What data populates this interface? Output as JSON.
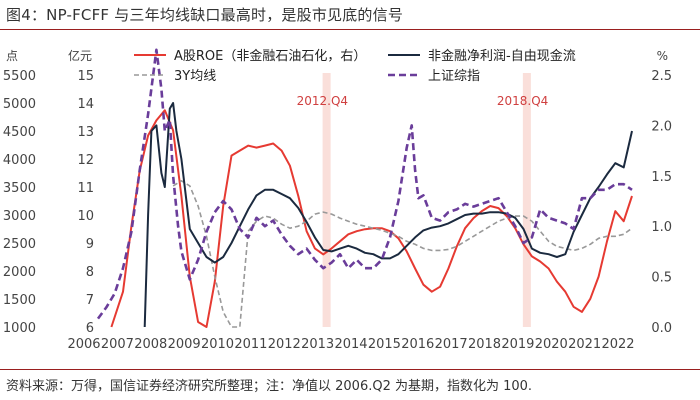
{
  "page": {
    "title": "图4：NP-FCFF 与三年均线缺口最高时，是股市见底的信号",
    "source": "资料来源：万得，国信证券经济研究所整理；注：净值以 2006.Q2 为基期，指数化为 100."
  },
  "chart_data": {
    "type": "line",
    "title": "图4：NP-FCFF 与三年均线缺口最高时，是股市见底的信号",
    "axes": {
      "left_outer": {
        "unit": "点",
        "min": 1000,
        "max": 5500,
        "ticks": [
          "5500",
          "5000",
          "4500",
          "4000",
          "3500",
          "3000",
          "2500",
          "2000",
          "1500",
          "1000"
        ]
      },
      "left_inner": {
        "unit": "亿元",
        "min": 6,
        "max": 15,
        "ticks": [
          "15",
          "14",
          "13",
          "12",
          "11",
          "10",
          "9",
          "8",
          "7",
          "6"
        ]
      },
      "right": {
        "unit": "%",
        "min": 0.0,
        "max": 2.5,
        "ticks": [
          "2.5",
          "2.0",
          "1.5",
          "1.0",
          "0.5",
          "0.0"
        ]
      },
      "x": {
        "min": 2006,
        "max": 2022,
        "ticks": [
          "2006",
          "2007",
          "2008",
          "2009",
          "2010",
          "2011",
          "2012",
          "2013",
          "2014",
          "2015",
          "2016",
          "2017",
          "2018",
          "2019",
          "2020",
          "2021",
          "2022"
        ]
      }
    },
    "annotations": [
      {
        "label": "2012.Q4",
        "x": 2012.85
      },
      {
        "label": "2018.Q4",
        "x": 2018.85
      }
    ],
    "legend": [
      "A股ROE（非金融石油石化，右）",
      "3Y均线",
      "非金融净利润-自由现金流",
      "上证综指"
    ],
    "series": [
      {
        "name": "A股ROE（非金融石油石化，右）",
        "axis": "right",
        "color": "#e63a32",
        "dash": "solid",
        "x": [
          2006.4,
          2006.75,
          2007.0,
          2007.25,
          2007.5,
          2007.75,
          2008.0,
          2008.25,
          2008.5,
          2008.75,
          2009.0,
          2009.25,
          2009.5,
          2009.75,
          2010.0,
          2010.25,
          2010.5,
          2010.75,
          2011.0,
          2011.25,
          2011.5,
          2011.75,
          2012.0,
          2012.25,
          2012.5,
          2012.75,
          2013.0,
          2013.25,
          2013.5,
          2013.75,
          2014.0,
          2014.25,
          2014.5,
          2014.75,
          2015.0,
          2015.25,
          2015.5,
          2015.75,
          2016.0,
          2016.25,
          2016.5,
          2016.75,
          2017.0,
          2017.25,
          2017.5,
          2017.75,
          2018.0,
          2018.25,
          2018.5,
          2018.75,
          2019.0,
          2019.25,
          2019.5,
          2019.75,
          2020.0,
          2020.25,
          2020.5,
          2020.75,
          2021.0,
          2021.25,
          2021.5,
          2021.75,
          2022.0
        ],
        "values": [
          0.0,
          0.35,
          1.0,
          1.55,
          1.9,
          2.05,
          2.15,
          1.95,
          1.3,
          0.5,
          0.05,
          0.0,
          0.45,
          1.2,
          1.7,
          1.75,
          1.8,
          1.78,
          1.8,
          1.82,
          1.75,
          1.6,
          1.3,
          0.95,
          0.78,
          0.72,
          0.78,
          0.85,
          0.92,
          0.95,
          0.97,
          0.98,
          0.98,
          0.95,
          0.88,
          0.75,
          0.58,
          0.42,
          0.35,
          0.4,
          0.58,
          0.8,
          0.98,
          1.08,
          1.15,
          1.2,
          1.18,
          1.1,
          0.98,
          0.82,
          0.7,
          0.65,
          0.58,
          0.45,
          0.35,
          0.2,
          0.15,
          0.28,
          0.5,
          0.85,
          1.15,
          1.05,
          1.3
        ]
      },
      {
        "name": "3Y均线",
        "axis": "right",
        "color": "#999999",
        "dash": "dashed",
        "x": [
          2008.25,
          2008.5,
          2008.75,
          2009.0,
          2009.25,
          2009.5,
          2009.75,
          2010.0,
          2010.25,
          2010.5,
          2010.75,
          2011.0,
          2011.25,
          2011.5,
          2011.75,
          2012.0,
          2012.25,
          2012.5,
          2012.75,
          2013.0,
          2013.25,
          2013.5,
          2013.75,
          2014.0,
          2014.25,
          2014.5,
          2014.75,
          2015.0,
          2015.25,
          2015.5,
          2015.75,
          2016.0,
          2016.25,
          2016.5,
          2016.75,
          2017.0,
          2017.25,
          2017.5,
          2017.75,
          2018.0,
          2018.25,
          2018.5,
          2018.75,
          2019.0,
          2019.25,
          2019.5,
          2019.75,
          2020.0,
          2020.25,
          2020.5,
          2020.75,
          2021.0,
          2021.25,
          2021.5,
          2021.75,
          2022.0
        ],
        "values": [
          1.4,
          1.45,
          1.4,
          1.2,
          0.9,
          0.5,
          0.15,
          0.0,
          0.0,
          0.95,
          1.05,
          1.1,
          1.08,
          1.02,
          0.98,
          1.0,
          1.05,
          1.12,
          1.14,
          1.12,
          1.08,
          1.05,
          1.02,
          1.0,
          0.98,
          0.96,
          0.93,
          0.9,
          0.85,
          0.82,
          0.78,
          0.76,
          0.76,
          0.77,
          0.8,
          0.85,
          0.9,
          0.95,
          1.0,
          1.05,
          1.08,
          1.1,
          1.1,
          1.05,
          0.95,
          0.85,
          0.8,
          0.78,
          0.76,
          0.78,
          0.82,
          0.88,
          0.9,
          0.9,
          0.92,
          0.98
        ]
      },
      {
        "name": "非金融净利润-自由现金流",
        "axis": "left_inner",
        "color": "#1b2a3f",
        "dash": "solid",
        "x": [
          2007.4,
          2007.5,
          2007.6,
          2007.75,
          2007.9,
          2008.0,
          2008.15,
          2008.25,
          2008.35,
          2008.5,
          2008.75,
          2009.0,
          2009.25,
          2009.5,
          2009.75,
          2010.0,
          2010.25,
          2010.5,
          2010.75,
          2011.0,
          2011.25,
          2011.5,
          2011.75,
          2012.0,
          2012.25,
          2012.5,
          2012.75,
          2013.0,
          2013.25,
          2013.5,
          2013.75,
          2014.0,
          2014.25,
          2014.5,
          2014.75,
          2015.0,
          2015.25,
          2015.5,
          2015.75,
          2016.0,
          2016.25,
          2016.5,
          2016.75,
          2017.0,
          2017.25,
          2017.5,
          2017.75,
          2018.0,
          2018.25,
          2018.5,
          2018.75,
          2019.0,
          2019.25,
          2019.5,
          2019.75,
          2020.0,
          2020.25,
          2020.5,
          2020.75,
          2021.0,
          2021.25,
          2021.5,
          2021.75,
          2022.0
        ],
        "values": [
          6.0,
          10.0,
          13.0,
          13.2,
          11.5,
          11.0,
          13.8,
          14.0,
          13.0,
          12.0,
          9.5,
          9.0,
          8.5,
          8.3,
          8.5,
          9.0,
          9.6,
          10.2,
          10.7,
          10.9,
          10.9,
          10.75,
          10.6,
          10.25,
          9.75,
          9.2,
          8.75,
          8.7,
          8.8,
          8.9,
          8.8,
          8.65,
          8.6,
          8.45,
          8.45,
          8.6,
          8.9,
          9.2,
          9.45,
          9.55,
          9.6,
          9.7,
          9.85,
          10.0,
          10.05,
          10.05,
          10.1,
          10.1,
          10.05,
          9.9,
          9.5,
          8.8,
          8.65,
          8.6,
          8.5,
          8.6,
          9.4,
          10.0,
          10.6,
          11.0,
          11.45,
          11.85,
          11.7,
          13.0
        ]
      },
      {
        "name": "上证综指",
        "axis": "left_outer",
        "color": "#6a3d9a",
        "dash": "dashed",
        "x": [
          2006.0,
          2006.25,
          2006.5,
          2006.75,
          2007.0,
          2007.25,
          2007.5,
          2007.75,
          2007.9,
          2008.0,
          2008.15,
          2008.25,
          2008.4,
          2008.5,
          2008.75,
          2009.0,
          2009.25,
          2009.5,
          2009.75,
          2010.0,
          2010.25,
          2010.5,
          2010.75,
          2011.0,
          2011.25,
          2011.5,
          2011.75,
          2012.0,
          2012.25,
          2012.5,
          2012.75,
          2013.0,
          2013.25,
          2013.5,
          2013.75,
          2014.0,
          2014.25,
          2014.5,
          2014.75,
          2015.0,
          2015.25,
          2015.4,
          2015.5,
          2015.6,
          2015.75,
          2016.0,
          2016.25,
          2016.5,
          2016.75,
          2017.0,
          2017.25,
          2017.5,
          2017.75,
          2018.0,
          2018.25,
          2018.5,
          2018.75,
          2019.0,
          2019.25,
          2019.5,
          2019.75,
          2020.0,
          2020.25,
          2020.5,
          2020.75,
          2021.0,
          2021.25,
          2021.5,
          2021.75,
          2022.0
        ],
        "values": [
          1150,
          1350,
          1600,
          2050,
          2700,
          3800,
          4800,
          5950,
          5250,
          4500,
          4700,
          3700,
          2800,
          2350,
          1850,
          2200,
          2700,
          3050,
          3250,
          3100,
          2750,
          2600,
          2950,
          2800,
          2900,
          2650,
          2450,
          2300,
          2400,
          2200,
          2050,
          2150,
          2300,
          2050,
          2200,
          2050,
          2050,
          2200,
          2600,
          3250,
          4200,
          4600,
          3800,
          3300,
          3350,
          2950,
          2900,
          3050,
          3100,
          3200,
          3150,
          3200,
          3250,
          3300,
          3050,
          2800,
          2500,
          2600,
          3100,
          2950,
          2900,
          2850,
          2750,
          3300,
          3300,
          3450,
          3450,
          3550,
          3550,
          3450
        ]
      }
    ]
  }
}
